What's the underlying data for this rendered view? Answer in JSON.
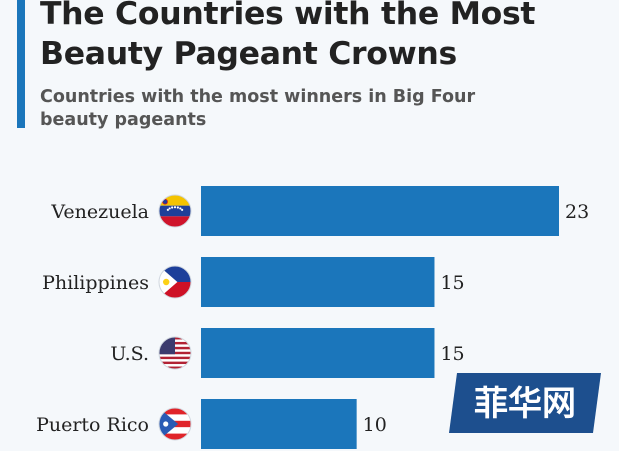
{
  "header": {
    "title": "The Countries with the Most Beauty Pageant Crowns",
    "subtitle": "Countries with the most winners in Big Four beauty pageants"
  },
  "colors": {
    "accent": "#1b76bb",
    "bar": "#1b76bb",
    "background": "#f5f8fb"
  },
  "chart_data": {
    "type": "bar",
    "orientation": "horizontal",
    "title": "The Countries with the Most Beauty Pageant Crowns",
    "subtitle": "Countries with the most winners in Big Four beauty pageants",
    "categories": [
      "Venezuela",
      "Philippines",
      "U.S.",
      "Puerto Rico"
    ],
    "values": [
      23,
      15,
      15,
      10
    ],
    "icons": [
      "venezuela-flag-icon",
      "philippines-flag-icon",
      "us-flag-icon",
      "puerto-rico-flag-icon"
    ],
    "xlabel": "",
    "ylabel": "",
    "xlim": [
      0,
      23
    ],
    "grid": false,
    "data_labels": true
  },
  "watermark": {
    "text": "菲华网"
  }
}
